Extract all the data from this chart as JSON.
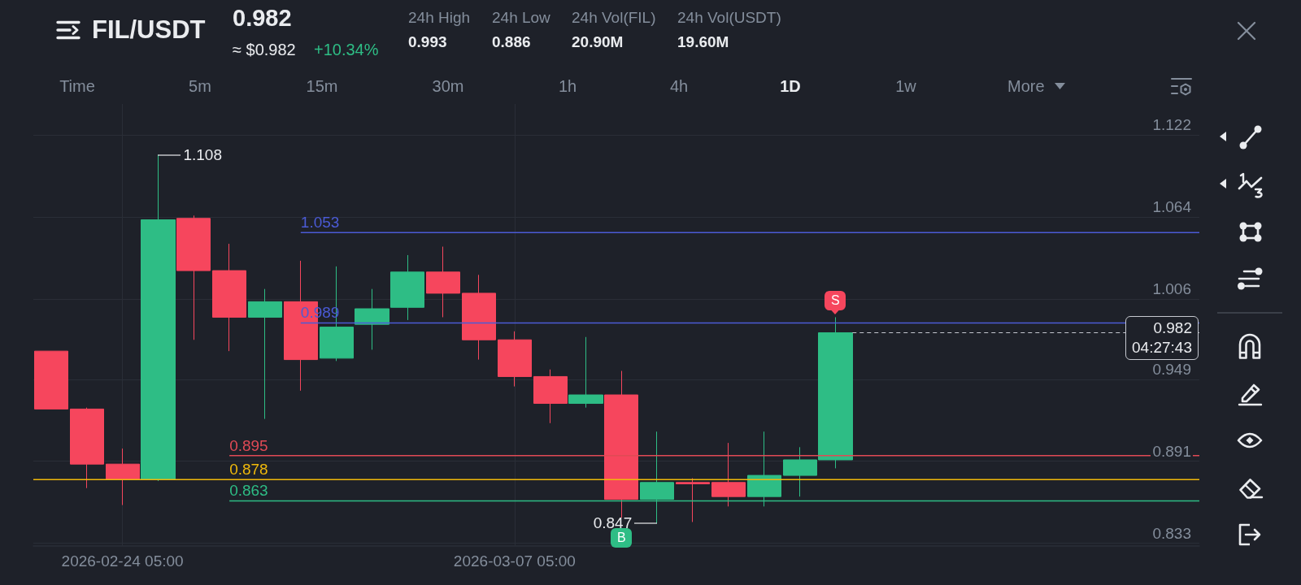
{
  "chart_data": {
    "type": "candlestick",
    "title": "FIL/USDT",
    "x": [
      "2026-02-22T05:00",
      "2026-02-23T05:00",
      "2026-02-24T05:00",
      "2026-02-25T05:00",
      "2026-02-26T05:00",
      "2026-02-27T05:00",
      "2026-02-28T05:00",
      "2026-03-01T05:00",
      "2026-03-02T05:00",
      "2026-03-03T05:00",
      "2026-03-04T05:00",
      "2026-03-05T05:00",
      "2026-03-06T05:00",
      "2026-03-07T05:00",
      "2026-03-08T05:00",
      "2026-03-09T05:00",
      "2026-03-10T05:00",
      "2026-03-11T05:00",
      "2026-03-12T05:00",
      "2026-03-13T05:00",
      "2026-03-14T05:00",
      "2026-03-15T05:00",
      "2026-03-16T05:00"
    ],
    "ohlc": [
      [
        0.969,
        0.969,
        0.928,
        0.928
      ],
      [
        0.928,
        0.929,
        0.872,
        0.889
      ],
      [
        0.889,
        0.9,
        0.86,
        0.878
      ],
      [
        0.878,
        1.108,
        0.877,
        1.062
      ],
      [
        1.063,
        1.065,
        0.977,
        1.026
      ],
      [
        1.026,
        1.045,
        0.969,
        0.993
      ],
      [
        0.993,
        1.013,
        0.921,
        1.004
      ],
      [
        1.004,
        1.033,
        0.941,
        0.963
      ],
      [
        0.964,
        1.029,
        0.962,
        0.986
      ],
      [
        0.988,
        1.013,
        0.97,
        0.999
      ],
      [
        1.0,
        1.037,
        0.991,
        1.025
      ],
      [
        1.025,
        1.043,
        0.993,
        1.01
      ],
      [
        1.01,
        1.023,
        0.963,
        0.977
      ],
      [
        0.977,
        0.983,
        0.944,
        0.951
      ],
      [
        0.951,
        0.956,
        0.918,
        0.932
      ],
      [
        0.932,
        0.979,
        0.929,
        0.938
      ],
      [
        0.938,
        0.955,
        0.851,
        0.864
      ],
      [
        0.864,
        0.912,
        0.847,
        0.876
      ],
      [
        0.876,
        0.879,
        0.848,
        0.875
      ],
      [
        0.876,
        0.904,
        0.859,
        0.866
      ],
      [
        0.866,
        0.912,
        0.859,
        0.881
      ],
      [
        0.881,
        0.901,
        0.866,
        0.892
      ],
      [
        0.892,
        0.993,
        0.886,
        0.982
      ]
    ],
    "colors": [
      "#f6465d",
      "#f6465d",
      "#f6465d",
      "#2ebd85",
      "#f6465d",
      "#f6465d",
      "#2ebd85",
      "#f6465d",
      "#2ebd85",
      "#2ebd85",
      "#2ebd85",
      "#f6465d",
      "#f6465d",
      "#f6465d",
      "#f6465d",
      "#2ebd85",
      "#f6465d",
      "#2ebd85",
      "#f6465d",
      "#f6465d",
      "#2ebd85",
      "#2ebd85",
      "#2ebd85"
    ],
    "series": [
      {
        "type": "line",
        "x": [
          "2026-03-01T05:00",
          "2026-03-26T10:00"
        ],
        "values": [
          1.053,
          1.053
        ],
        "value_labels": [
          "1.053",
          null
        ],
        "color": "#4b5bd6"
      },
      {
        "type": "line",
        "x": [
          "2026-03-01T05:00",
          "2026-03-26T10:00"
        ],
        "values": [
          0.989,
          0.989
        ],
        "value_labels": [
          "0.989",
          null
        ],
        "color": "#4b5bd6"
      },
      {
        "type": "line",
        "x": [
          "2026-02-27T05:00",
          "2026-03-26T10:00"
        ],
        "values": [
          0.895,
          0.895
        ],
        "value_labels": [
          "0.895",
          null
        ],
        "color": "#e04a55"
      },
      {
        "type": "line",
        "x": [
          "2026-02-21T17:00",
          "2026-02-27T05:00",
          "2026-03-26T10:00"
        ],
        "values": [
          0.878,
          0.878,
          0.878
        ],
        "value_labels": [
          null,
          "0.878",
          null
        ],
        "color": "#f0b90b"
      },
      {
        "type": "line",
        "x": [
          "2026-02-27T05:00",
          "2026-03-26T10:00"
        ],
        "values": [
          0.863,
          0.863
        ],
        "value_labels": [
          "0.863",
          null
        ],
        "color": "#2ebd85"
      }
    ],
    "marker": "none",
    "line_style": "solid",
    "ref_lines": [
      {
        "axis": "y",
        "value": 0.982,
        "label": "0.982\n04:27:43",
        "color": "#c5c8cf",
        "line_style": "dashed"
      }
    ],
    "xlim": [
      "2026-02-21T17:00",
      "2026-03-26T10:00"
    ],
    "xticks": [
      {
        "value": "2026-02-24T05:00",
        "label": "2026-02-24 05:00"
      },
      {
        "value": "2026-03-07T05:00",
        "label": "2026-03-07 05:00"
      }
    ],
    "ylim": [
      0.831,
      1.144
    ],
    "yticks": [
      0.833,
      0.891,
      0.949,
      1.006,
      1.064,
      1.122
    ],
    "grid": true,
    "annotations": [
      "0.982",
      "≈ $0.982",
      "+10.34%",
      "24h High",
      "0.993",
      "24h Low",
      "0.886",
      "24h Vol(FIL)",
      "20.90M",
      "24h Vol(USDT)",
      "19.60M",
      "Time",
      "5m",
      "15m",
      "30m",
      "1h",
      "4h",
      "1D",
      "1w",
      "More",
      {
        "text": "1.108",
        "x": "2026-02-25T05:00",
        "y": 1.108
      },
      {
        "text": "0.847",
        "x": "2026-03-11T05:00",
        "y": 0.847
      },
      {
        "text": "S",
        "x": "2026-03-16T05:00",
        "y": 1.005
      },
      {
        "text": "B",
        "x": "2026-03-10T05:00",
        "y": 0.837
      }
    ]
  }
}
